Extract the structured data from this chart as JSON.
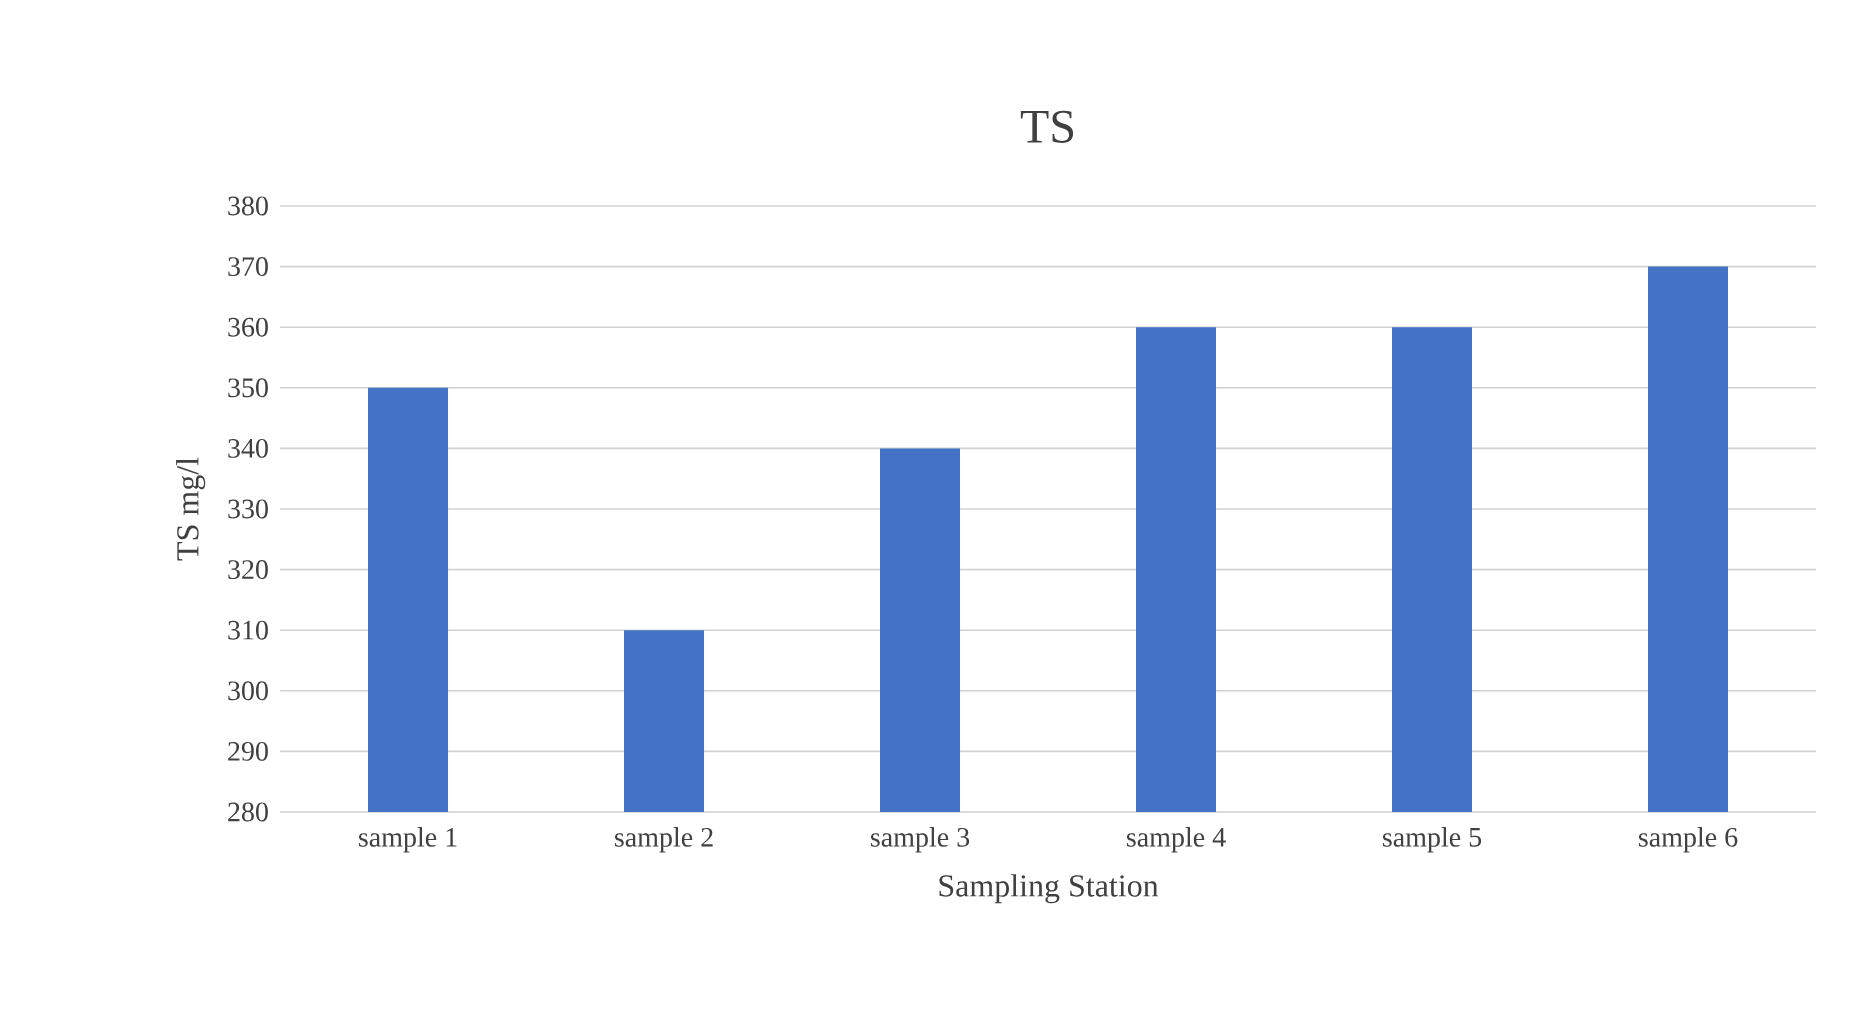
{
  "chart_data": {
    "type": "bar",
    "title": "TS",
    "xlabel": "Sampling Station",
    "ylabel": "TS mg/l",
    "categories": [
      "sample 1",
      "sample 2",
      "sample 3",
      "sample 4",
      "sample 5",
      "sample 6"
    ],
    "values": [
      350,
      310,
      340,
      360,
      360,
      370
    ],
    "color": "#4472c4",
    "ylim": [
      280,
      380
    ],
    "yticks": [
      280,
      290,
      300,
      310,
      320,
      330,
      340,
      350,
      360,
      370,
      380
    ],
    "grid": "y"
  }
}
